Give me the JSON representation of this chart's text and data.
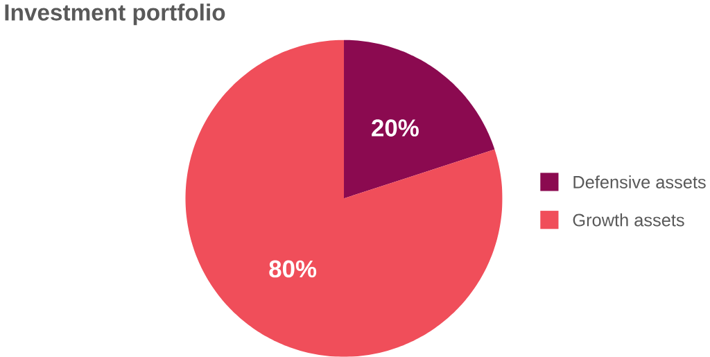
{
  "chart_data": {
    "type": "pie",
    "title": "Investment portfolio",
    "categories": [
      "Defensive assets",
      "Growth assets"
    ],
    "values": [
      20,
      80
    ],
    "colors": [
      "#8b0a50",
      "#f04e5a"
    ],
    "value_labels": [
      "20%",
      "80%"
    ],
    "legend": "right"
  }
}
